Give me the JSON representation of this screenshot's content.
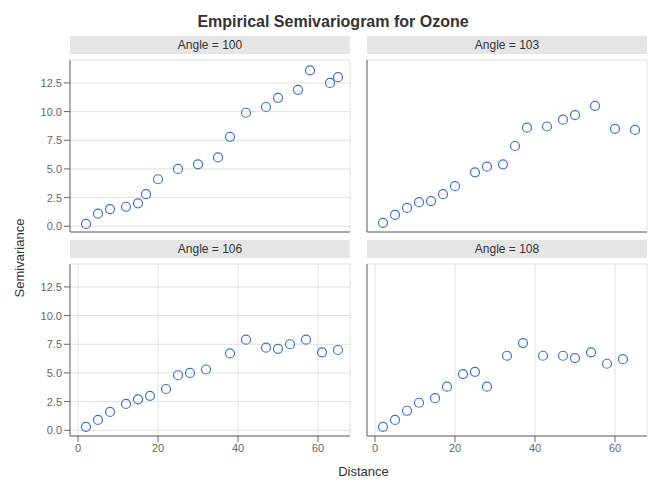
{
  "title": "Empirical Semivariogram for Ozone",
  "xlabel": "Distance",
  "ylabel": "Semivariance",
  "chart_data": [
    {
      "type": "scatter",
      "title": "Angle = 100",
      "x": [
        2,
        5,
        8,
        12,
        15,
        17,
        20,
        25,
        30,
        35,
        38,
        42,
        47,
        50,
        55,
        58,
        63,
        65
      ],
      "values": [
        0.2,
        1.1,
        1.5,
        1.7,
        2.0,
        2.8,
        4.1,
        5.0,
        5.4,
        6.0,
        7.8,
        9.9,
        10.4,
        11.2,
        11.9,
        13.6,
        12.5,
        13.0
      ],
      "xlim": [
        -2,
        68
      ],
      "ylim": [
        -0.5,
        14.5
      ],
      "xticks": [
        0,
        20,
        40,
        60
      ],
      "yticks": [
        {
          "value": 0,
          "label": "0.0"
        },
        2.5,
        {
          "value": 5,
          "label": "5.0"
        },
        7.5,
        {
          "value": 10,
          "label": "10.0"
        },
        12.5
      ],
      "grid": true,
      "color": "#4472c4",
      "marker": "circle",
      "tick_labels": "y"
    },
    {
      "type": "scatter",
      "title": "Angle = 103",
      "x": [
        2,
        5,
        8,
        11,
        14,
        17,
        20,
        25,
        28,
        32,
        35,
        38,
        43,
        47,
        50,
        55,
        60,
        65
      ],
      "values": [
        0.3,
        1.0,
        1.6,
        2.1,
        2.2,
        2.8,
        3.5,
        4.7,
        5.2,
        5.4,
        7.0,
        8.6,
        8.7,
        9.3,
        9.7,
        10.5,
        8.5,
        8.4
      ],
      "xlim": [
        -2,
        68
      ],
      "ylim": [
        -0.5,
        14.5
      ],
      "xticks": [
        0,
        20,
        40,
        60
      ],
      "yticks": [
        {
          "value": 0,
          "label": "0.0"
        },
        2.5,
        {
          "value": 5,
          "label": "5.0"
        },
        7.5,
        {
          "value": 10,
          "label": "10.0"
        },
        12.5
      ],
      "grid": true,
      "color": "#4472c4",
      "marker": "circle",
      "tick_labels": false
    },
    {
      "type": "scatter",
      "title": "Angle = 106",
      "x": [
        2,
        5,
        8,
        12,
        15,
        18,
        22,
        25,
        28,
        32,
        38,
        42,
        47,
        50,
        53,
        57,
        61,
        65
      ],
      "values": [
        0.3,
        0.9,
        1.6,
        2.3,
        2.7,
        3.0,
        3.6,
        4.8,
        5.0,
        5.3,
        6.7,
        7.9,
        7.2,
        7.1,
        7.5,
        7.9,
        6.8,
        7.0
      ],
      "xlim": [
        -2,
        68
      ],
      "ylim": [
        -0.5,
        14.5
      ],
      "xticks": [
        0,
        20,
        40,
        60
      ],
      "yticks": [
        {
          "value": 0,
          "label": "0.0"
        },
        2.5,
        {
          "value": 5,
          "label": "5.0"
        },
        7.5,
        {
          "value": 10,
          "label": "10.0"
        },
        12.5
      ],
      "grid": true,
      "color": "#4472c4",
      "marker": "circle",
      "tick_labels": true
    },
    {
      "type": "scatter",
      "title": "Angle = 108",
      "x": [
        2,
        5,
        8,
        11,
        15,
        18,
        22,
        25,
        28,
        33,
        37,
        42,
        47,
        50,
        54,
        58,
        62
      ],
      "values": [
        0.3,
        0.9,
        1.7,
        2.4,
        2.8,
        3.8,
        4.9,
        5.1,
        3.8,
        6.5,
        7.6,
        6.5,
        6.5,
        6.3,
        6.8,
        5.8,
        6.2
      ],
      "xlim": [
        -2,
        68
      ],
      "ylim": [
        -0.5,
        14.5
      ],
      "xticks": [
        0,
        20,
        40,
        60
      ],
      "yticks": [
        {
          "value": 0,
          "label": "0.0"
        },
        2.5,
        {
          "value": 5,
          "label": "5.0"
        },
        7.5,
        {
          "value": 10,
          "label": "10.0"
        },
        12.5
      ],
      "grid": true,
      "color": "#4472c4",
      "marker": "circle",
      "tick_labels": "x"
    }
  ]
}
